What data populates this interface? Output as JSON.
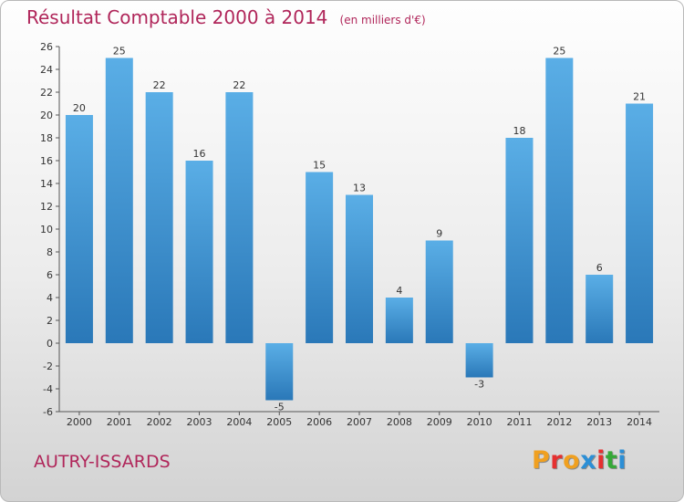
{
  "header": {
    "title": "Résultat Comptable 2000 à 2014",
    "unit_note": "(en milliers d'€)"
  },
  "footer": {
    "commune": "AUTRY-ISSARDS",
    "logo_letters": [
      "P",
      "r",
      "o",
      "x",
      "i",
      "t",
      "i"
    ]
  },
  "colors": {
    "title": "#b0265a",
    "bar_top": "#5aaee6",
    "bar_bottom": "#2a78b8",
    "logo": [
      "#f0a020",
      "#e53030",
      "#f0a020",
      "#2c8fd6",
      "#e53030",
      "#35a838",
      "#2c8fd6"
    ]
  },
  "chart_data": {
    "type": "bar",
    "categories": [
      "2000",
      "2001",
      "2002",
      "2003",
      "2004",
      "2005",
      "2006",
      "2007",
      "2008",
      "2009",
      "2010",
      "2011",
      "2012",
      "2013",
      "2014"
    ],
    "values": [
      20,
      25,
      22,
      16,
      22,
      -5,
      15,
      13,
      4,
      9,
      -3,
      18,
      25,
      6,
      21
    ],
    "title": "Résultat Comptable 2000 à 2014",
    "subtitle": "(en milliers d'€)",
    "xlabel": "",
    "ylabel": "",
    "ylim": [
      -6,
      26
    ],
    "yticks": [
      -6,
      -4,
      -2,
      0,
      2,
      4,
      6,
      8,
      10,
      12,
      14,
      16,
      18,
      20,
      22,
      24,
      26
    ],
    "grid": false,
    "legend": "none"
  }
}
